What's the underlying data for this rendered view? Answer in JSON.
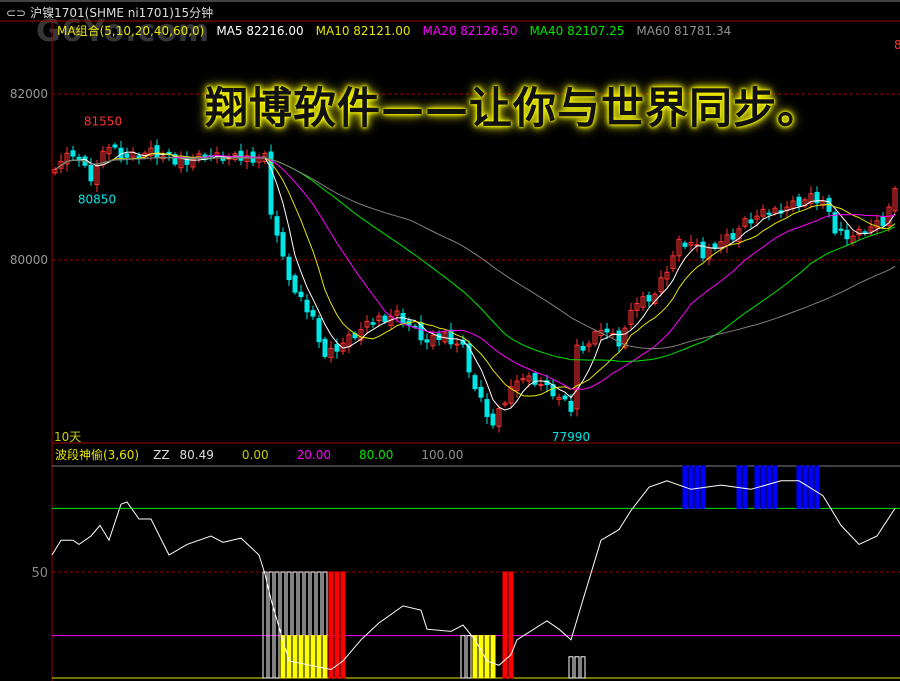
{
  "window": {
    "title": "沪镍1701(SHME ni1701)15分钟",
    "icon": "link-icon"
  },
  "watermark": "G6Yo.com",
  "slogan": "翔博软件——让你与世界同步。",
  "colors": {
    "up": "#ff3232",
    "down": "#00e5e5",
    "ma5": "#ffffff",
    "ma10": "#e5e500",
    "ma20": "#ff00ff",
    "ma40": "#00e600",
    "ma60": "#808080",
    "grid": "#a00000"
  },
  "main_legend": {
    "group": "MA组合(5,10,20,40,60,0)",
    "ma5": "MA5 82216.00",
    "ma10": "MA10 82121.00",
    "ma20": "MA20 82126.50",
    "ma40": "MA40 82107.25",
    "ma60": "MA60 81781.34"
  },
  "period_label": "10天",
  "right_cut_label": "8",
  "osc_legend": {
    "name": "波段神偷(3,60)",
    "zz_label": "ZZ",
    "zz_value": "80.49",
    "l0": "0.00",
    "l20": "20.00",
    "l80": "80.00",
    "l100": "100.00"
  },
  "chart_data": [
    {
      "type": "candlestick",
      "panel": "main",
      "yticks": [
        80000,
        82000
      ],
      "ytick_labels": [
        "80000",
        "82000"
      ],
      "ylim": [
        77500,
        82600
      ],
      "annotations": [
        {
          "bar": 8,
          "price": 81550,
          "text": "81550",
          "color": "#ff3232"
        },
        {
          "bar": 7,
          "price": 80850,
          "text": "80850",
          "color": "#00e5e5"
        },
        {
          "bar": 86,
          "price": 77990,
          "text": "77990",
          "color": "#00e5e5"
        }
      ],
      "close_path": [
        [
          0,
          81150
        ],
        [
          3,
          81300
        ],
        [
          6,
          80990
        ],
        [
          9,
          81380
        ],
        [
          12,
          81250
        ],
        [
          16,
          81300
        ],
        [
          20,
          81180
        ],
        [
          25,
          81260
        ],
        [
          30,
          81220
        ],
        [
          35,
          81250
        ],
        [
          35.5,
          81200
        ],
        [
          36,
          80600
        ],
        [
          38,
          80000
        ],
        [
          40,
          79600
        ],
        [
          43,
          79300
        ],
        [
          45,
          78850
        ],
        [
          47,
          78950
        ],
        [
          50,
          79100
        ],
        [
          54,
          79300
        ],
        [
          57,
          79350
        ],
        [
          60,
          79150
        ],
        [
          62,
          79000
        ],
        [
          65,
          79100
        ],
        [
          68,
          78950
        ],
        [
          70,
          78450
        ],
        [
          72,
          78150
        ],
        [
          73,
          78000
        ],
        [
          75,
          78300
        ],
        [
          77,
          78600
        ],
        [
          80,
          78550
        ],
        [
          83,
          78400
        ],
        [
          86,
          78200
        ],
        [
          87,
          78950
        ],
        [
          89,
          79000
        ],
        [
          91,
          79200
        ],
        [
          94,
          79000
        ],
        [
          97,
          79500
        ],
        [
          100,
          79600
        ],
        [
          102,
          79900
        ],
        [
          104,
          80200
        ],
        [
          106,
          80200
        ],
        [
          108,
          80050
        ],
        [
          110,
          80200
        ],
        [
          113,
          80300
        ],
        [
          115,
          80450
        ],
        [
          118,
          80550
        ],
        [
          122,
          80650
        ],
        [
          126,
          80750
        ],
        [
          128,
          80700
        ],
        [
          130,
          80350
        ],
        [
          133,
          80300
        ],
        [
          136,
          80400
        ],
        [
          138,
          80450
        ],
        [
          140,
          80800
        ]
      ],
      "series": [
        {
          "name": "MA5",
          "period": 5
        },
        {
          "name": "MA10",
          "period": 10
        },
        {
          "name": "MA20",
          "period": 20
        },
        {
          "name": "MA40",
          "period": 40
        },
        {
          "name": "MA60",
          "period": 60
        }
      ]
    },
    {
      "type": "line",
      "panel": "oscillator",
      "name": "ZZ",
      "yticks": [
        50
      ],
      "ytick_labels": [
        "50"
      ],
      "ylim": [
        0,
        100
      ],
      "levels": [
        {
          "value": 100,
          "color": "#808080"
        },
        {
          "value": 80,
          "color": "#00e600"
        },
        {
          "value": 50,
          "color": "#a00000",
          "dashed": true
        },
        {
          "value": 20,
          "color": "#ff00ff"
        },
        {
          "value": 0,
          "color": "#e5e500"
        }
      ],
      "line": [
        [
          -0.5,
          58
        ],
        [
          1,
          65
        ],
        [
          3,
          65
        ],
        [
          4,
          63
        ],
        [
          6,
          67
        ],
        [
          7.5,
          72
        ],
        [
          9,
          65
        ],
        [
          11,
          82
        ],
        [
          12,
          83
        ],
        [
          14,
          75
        ],
        [
          16,
          75
        ],
        [
          19,
          58
        ],
        [
          22,
          63
        ],
        [
          26,
          67
        ],
        [
          28,
          64
        ],
        [
          31,
          66
        ],
        [
          34,
          58
        ],
        [
          35,
          49
        ],
        [
          36,
          37
        ],
        [
          39,
          8
        ],
        [
          46,
          4
        ],
        [
          48,
          8
        ],
        [
          51,
          18
        ],
        [
          54,
          26
        ],
        [
          58,
          34
        ],
        [
          61,
          32
        ],
        [
          62,
          23
        ],
        [
          66,
          22
        ],
        [
          68,
          25
        ],
        [
          70,
          18
        ],
        [
          72,
          8
        ],
        [
          74,
          6
        ],
        [
          76,
          11
        ],
        [
          77,
          18
        ],
        [
          82,
          27
        ],
        [
          84,
          23
        ],
        [
          86,
          18
        ],
        [
          88,
          37
        ],
        [
          91,
          65
        ],
        [
          94,
          70
        ],
        [
          96,
          79
        ],
        [
          99,
          90
        ],
        [
          102,
          93
        ],
        [
          106,
          89
        ],
        [
          111,
          91
        ],
        [
          116,
          89
        ],
        [
          121,
          93
        ],
        [
          124,
          93
        ],
        [
          128,
          86
        ],
        [
          131,
          72
        ],
        [
          134,
          63
        ],
        [
          137,
          67
        ],
        [
          140,
          80
        ]
      ],
      "bands": [
        {
          "from": 35,
          "to": 48,
          "value": 50,
          "color": "#ffffff",
          "hollow": true
        },
        {
          "from": 38,
          "to": 45,
          "value": 20,
          "color": "#ffff00"
        },
        {
          "from": 46,
          "to": 48,
          "value": 50,
          "color": "#ff0000"
        },
        {
          "from": 68,
          "to": 73,
          "value": 20,
          "color": "#ffffff",
          "hollow": true
        },
        {
          "from": 70,
          "to": 73,
          "value": 20,
          "color": "#ffff00"
        },
        {
          "from": 75,
          "to": 76,
          "value": 50,
          "color": "#ff0000"
        },
        {
          "from": 86,
          "to": 88,
          "value": 10,
          "color": "#ffffff",
          "hollow": true
        },
        {
          "from": 105,
          "to": 108,
          "value": 100,
          "base": 80,
          "color": "#0000ff"
        },
        {
          "from": 114,
          "to": 115,
          "value": 100,
          "base": 80,
          "color": "#0000ff"
        },
        {
          "from": 117,
          "to": 120,
          "value": 100,
          "base": 80,
          "color": "#0000ff"
        },
        {
          "from": 124,
          "to": 127,
          "value": 100,
          "base": 80,
          "color": "#0000ff"
        }
      ]
    }
  ]
}
